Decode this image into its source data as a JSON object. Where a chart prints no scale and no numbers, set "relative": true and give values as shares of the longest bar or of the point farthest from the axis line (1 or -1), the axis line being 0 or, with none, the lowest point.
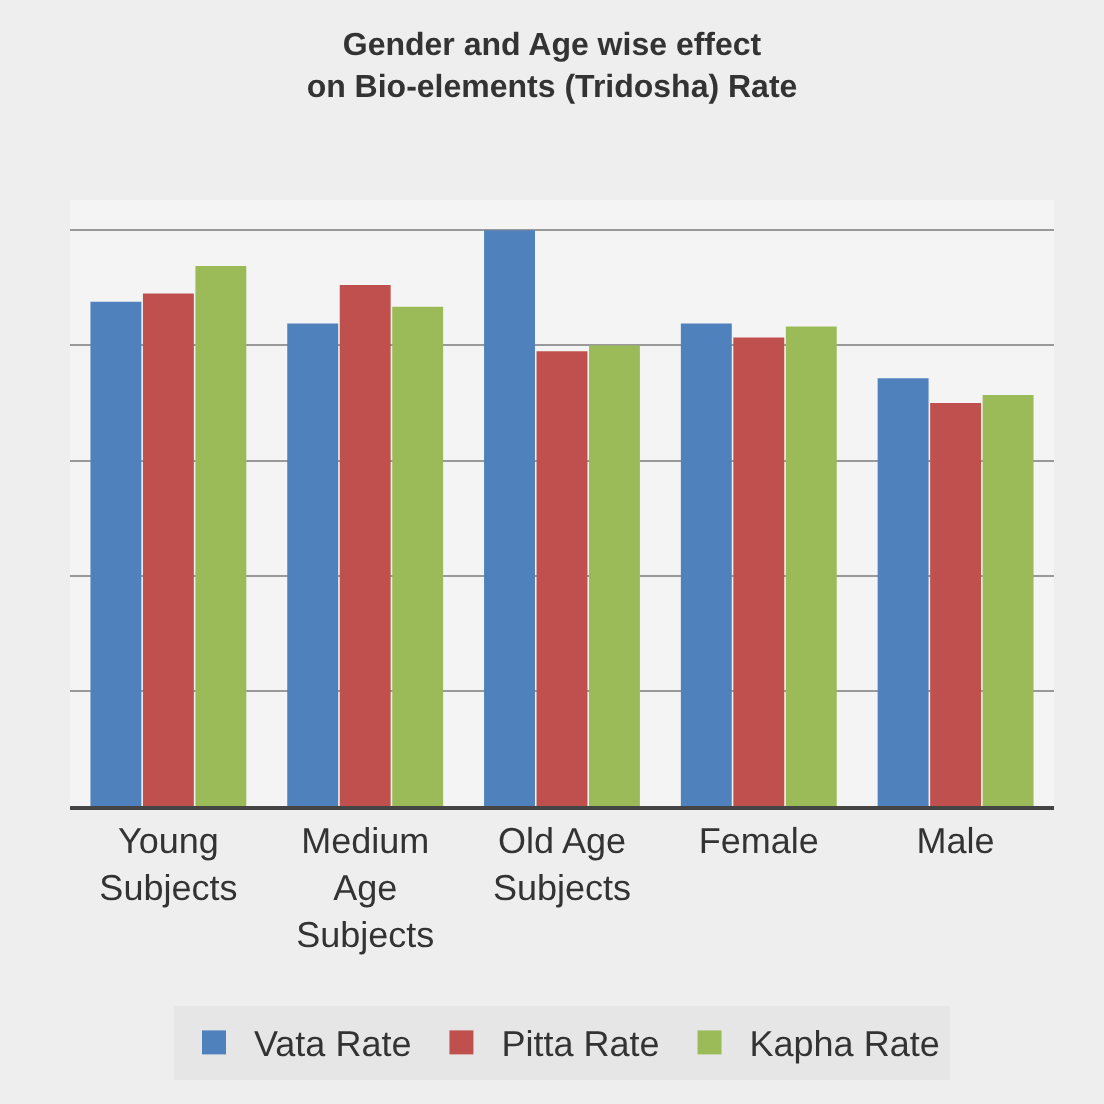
{
  "chart_data": {
    "type": "bar",
    "title": "Gender and Age wise effect\non Bio-elements (Tridosha) Rate",
    "categories": [
      "Young\nSubjects",
      "Medium\nAge\nSubjects",
      "Old Age\nSubjects",
      "Female",
      "Male"
    ],
    "relative": true,
    "series": [
      {
        "name": "Vata Rate",
        "color": "#4f81bd",
        "values": [
          0.876,
          0.838,
          1,
          0.838,
          0.743
        ]
      },
      {
        "name": "Pitta Rate",
        "color": "#c0504d",
        "values": [
          0.89,
          0.905,
          0.79,
          0.814,
          0.7
        ]
      },
      {
        "name": "Kapha Rate",
        "color": "#9bbb59",
        "values": [
          0.938,
          0.867,
          0.8,
          0.833,
          0.714
        ]
      }
    ],
    "grid": "y",
    "legend": "bottom"
  }
}
